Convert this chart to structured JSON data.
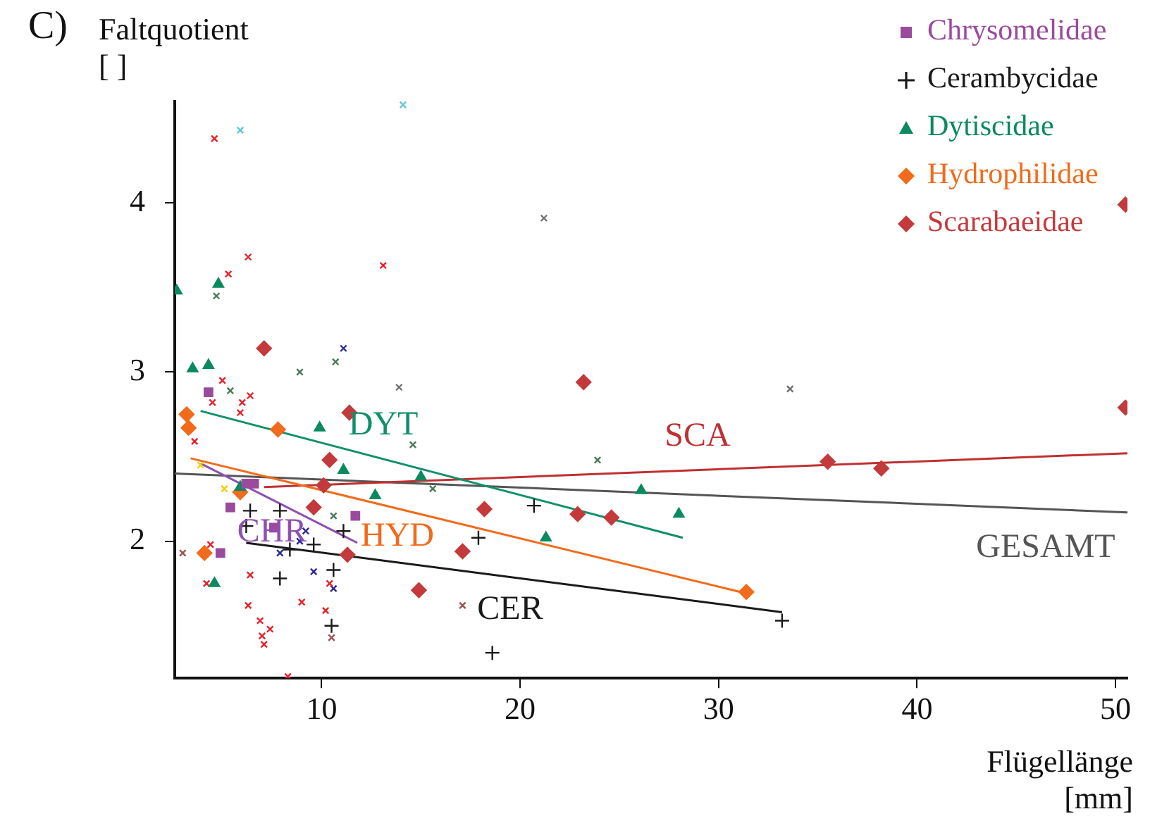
{
  "chart_data": {
    "type": "scatter",
    "xlabel": "Flügellänge\n[mm]",
    "ylabel": "Faltquotient\n[ ]",
    "xlim": [
      2.6,
      50.6
    ],
    "ylim": [
      1.19,
      4.6
    ],
    "xticks": [
      10,
      20,
      30,
      40,
      50
    ],
    "yticks": [
      2,
      3,
      4
    ],
    "grid": false,
    "legend": "top right",
    "annotations": [
      "C)",
      "DYT",
      "HYD",
      "CHR",
      "CER",
      "SCA",
      "GESAMT"
    ],
    "series": [
      {
        "name": "Chrysomelidae",
        "color": "#9a4b9e",
        "marker": "square",
        "x": [
          4.3,
          6.2,
          6.6,
          5.4,
          7.6,
          11.7,
          4.9
        ],
        "values": [
          2.88,
          2.34,
          2.34,
          2.2,
          2.08,
          2.15,
          1.93
        ]
      },
      {
        "name": "Cerambycidae",
        "color": "#1a1a1a",
        "marker": "plus",
        "x": [
          6.4,
          7.9,
          6.2,
          8.4,
          9.6,
          11.1,
          7.9,
          10.6,
          10.5,
          20.7,
          17.9,
          18.6,
          33.2
        ],
        "values": [
          2.18,
          2.18,
          2.09,
          1.95,
          1.98,
          2.06,
          1.78,
          1.83,
          1.5,
          2.21,
          2.02,
          1.34,
          1.53
        ]
      },
      {
        "name": "Dytiscidae",
        "color": "#0a8a5e",
        "marker": "triangle",
        "x": [
          4.8,
          3.5,
          4.3,
          2.7,
          9.9,
          11.1,
          15,
          12.7,
          5.9,
          4.6,
          26.1,
          28,
          21.3
        ],
        "values": [
          3.52,
          3.02,
          3.04,
          3.48,
          2.67,
          2.42,
          2.38,
          2.27,
          2.32,
          1.75,
          2.3,
          2.16,
          2.02
        ]
      },
      {
        "name": "Hydrophilidae",
        "color": "#f26a1b",
        "marker": "diamond",
        "x": [
          3.2,
          3.3,
          7.8,
          5.9,
          4.1,
          31.4
        ],
        "values": [
          2.75,
          2.67,
          2.66,
          2.29,
          1.93,
          1.7
        ]
      },
      {
        "name": "Scarabaeidae",
        "color": "#c43a3c",
        "marker": "diamond",
        "x": [
          7.1,
          11.4,
          10.4,
          10.1,
          9.6,
          11.3,
          14.9,
          23.2,
          18.2,
          22.9,
          24.6,
          17.1,
          35.5,
          38.2,
          50.5,
          50.5
        ],
        "values": [
          3.14,
          2.76,
          2.48,
          2.33,
          2.2,
          1.92,
          1.71,
          2.94,
          2.19,
          2.16,
          2.14,
          1.94,
          2.47,
          2.43,
          2.79,
          3.99
        ]
      },
      {
        "color": "#e8202a",
        "marker": "cross",
        "x": [
          4.6,
          6.3,
          5.3,
          13.1,
          5,
          4.5,
          6,
          6.4,
          5.9,
          3.6,
          4.4,
          6.4,
          4.2,
          6.3,
          6.9,
          7.4,
          7,
          7.1,
          9,
          10.4,
          10.2,
          8.3
        ],
        "values": [
          4.38,
          3.68,
          3.58,
          3.63,
          2.95,
          2.82,
          2.82,
          2.86,
          2.76,
          2.59,
          1.98,
          1.8,
          1.75,
          1.62,
          1.53,
          1.48,
          1.44,
          1.39,
          1.64,
          1.75,
          1.59,
          1.2
        ]
      },
      {
        "color": "#a05050",
        "marker": "cross",
        "x": [
          3,
          10.5,
          17.1
        ],
        "values": [
          1.93,
          1.43,
          1.62
        ]
      },
      {
        "color": "#60c8d8",
        "marker": "cross",
        "x": [
          5.9,
          14.1
        ],
        "values": [
          4.43,
          4.58
        ]
      },
      {
        "color": "#4a7a5a",
        "marker": "cross",
        "x": [
          4.7,
          8.9,
          10.7,
          5.4,
          14.6,
          15.6,
          10.6,
          23.9
        ],
        "values": [
          3.45,
          3,
          3.06,
          2.89,
          2.57,
          2.31,
          2.15,
          2.48
        ]
      },
      {
        "color": "#2a2a9a",
        "marker": "cross",
        "x": [
          11.1,
          9.2,
          8.9,
          7.9,
          9.6,
          10.6
        ],
        "values": [
          3.14,
          2.06,
          2,
          1.93,
          1.82,
          1.72
        ]
      },
      {
        "color": "#f0d000",
        "marker": "cross",
        "x": [
          3.9,
          5.1
        ],
        "values": [
          2.45,
          2.31
        ]
      },
      {
        "color": "#707070",
        "marker": "cross",
        "x": [
          21.2,
          33.6,
          13.9
        ],
        "values": [
          3.91,
          2.9,
          2.91
        ]
      },
      {
        "type": "line",
        "color": "#10906a",
        "x": [
          3.9,
          28.2
        ],
        "values": [
          2.77,
          2.02
        ]
      },
      {
        "type": "line",
        "color": "#f26a1b",
        "x": [
          3.4,
          31.1
        ],
        "values": [
          2.49,
          1.7
        ]
      },
      {
        "type": "line",
        "color": "#9050b0",
        "x": [
          3.9,
          11.8
        ],
        "values": [
          2.46,
          1.99
        ]
      },
      {
        "type": "line",
        "color": "#1a1a1a",
        "x": [
          6.2,
          33.2
        ],
        "values": [
          1.99,
          1.58
        ]
      },
      {
        "type": "line",
        "color": "#c03030",
        "x": [
          7.1,
          50.6
        ],
        "values": [
          2.32,
          2.52
        ]
      },
      {
        "type": "line",
        "color": "#555555",
        "x": [
          2.6,
          50.6
        ],
        "values": [
          2.4,
          2.17
        ]
      }
    ]
  }
}
